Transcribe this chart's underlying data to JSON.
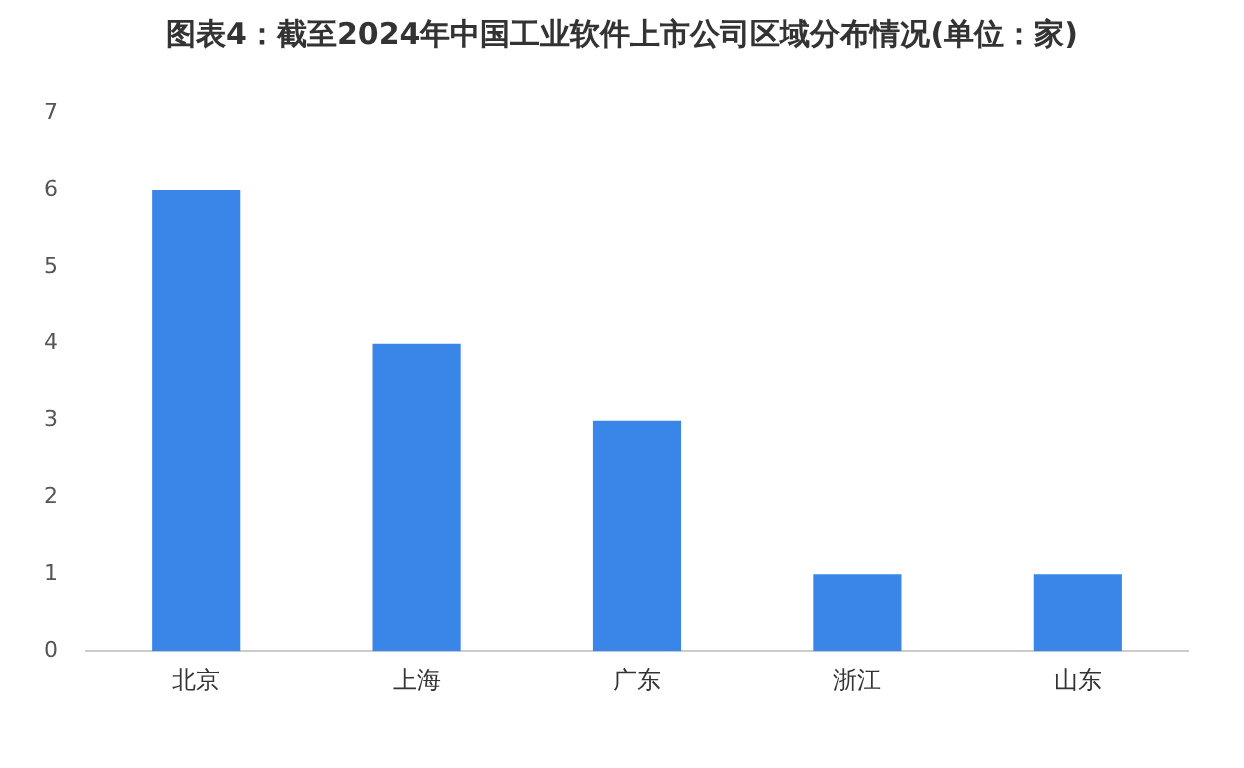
{
  "chart_data": {
    "type": "bar",
    "title": "图表4：截至2024年中国工业软件上市公司区域分布情况(单位：家)",
    "categories": [
      "北京",
      "上海",
      "广东",
      "浙江",
      "山东"
    ],
    "values": [
      6,
      4,
      3,
      1,
      1
    ],
    "color": "#3a86e8",
    "ylim": [
      0,
      7
    ],
    "yticks": [
      0,
      1,
      2,
      3,
      4,
      5,
      6,
      7
    ],
    "grid": false,
    "legend": false
  }
}
